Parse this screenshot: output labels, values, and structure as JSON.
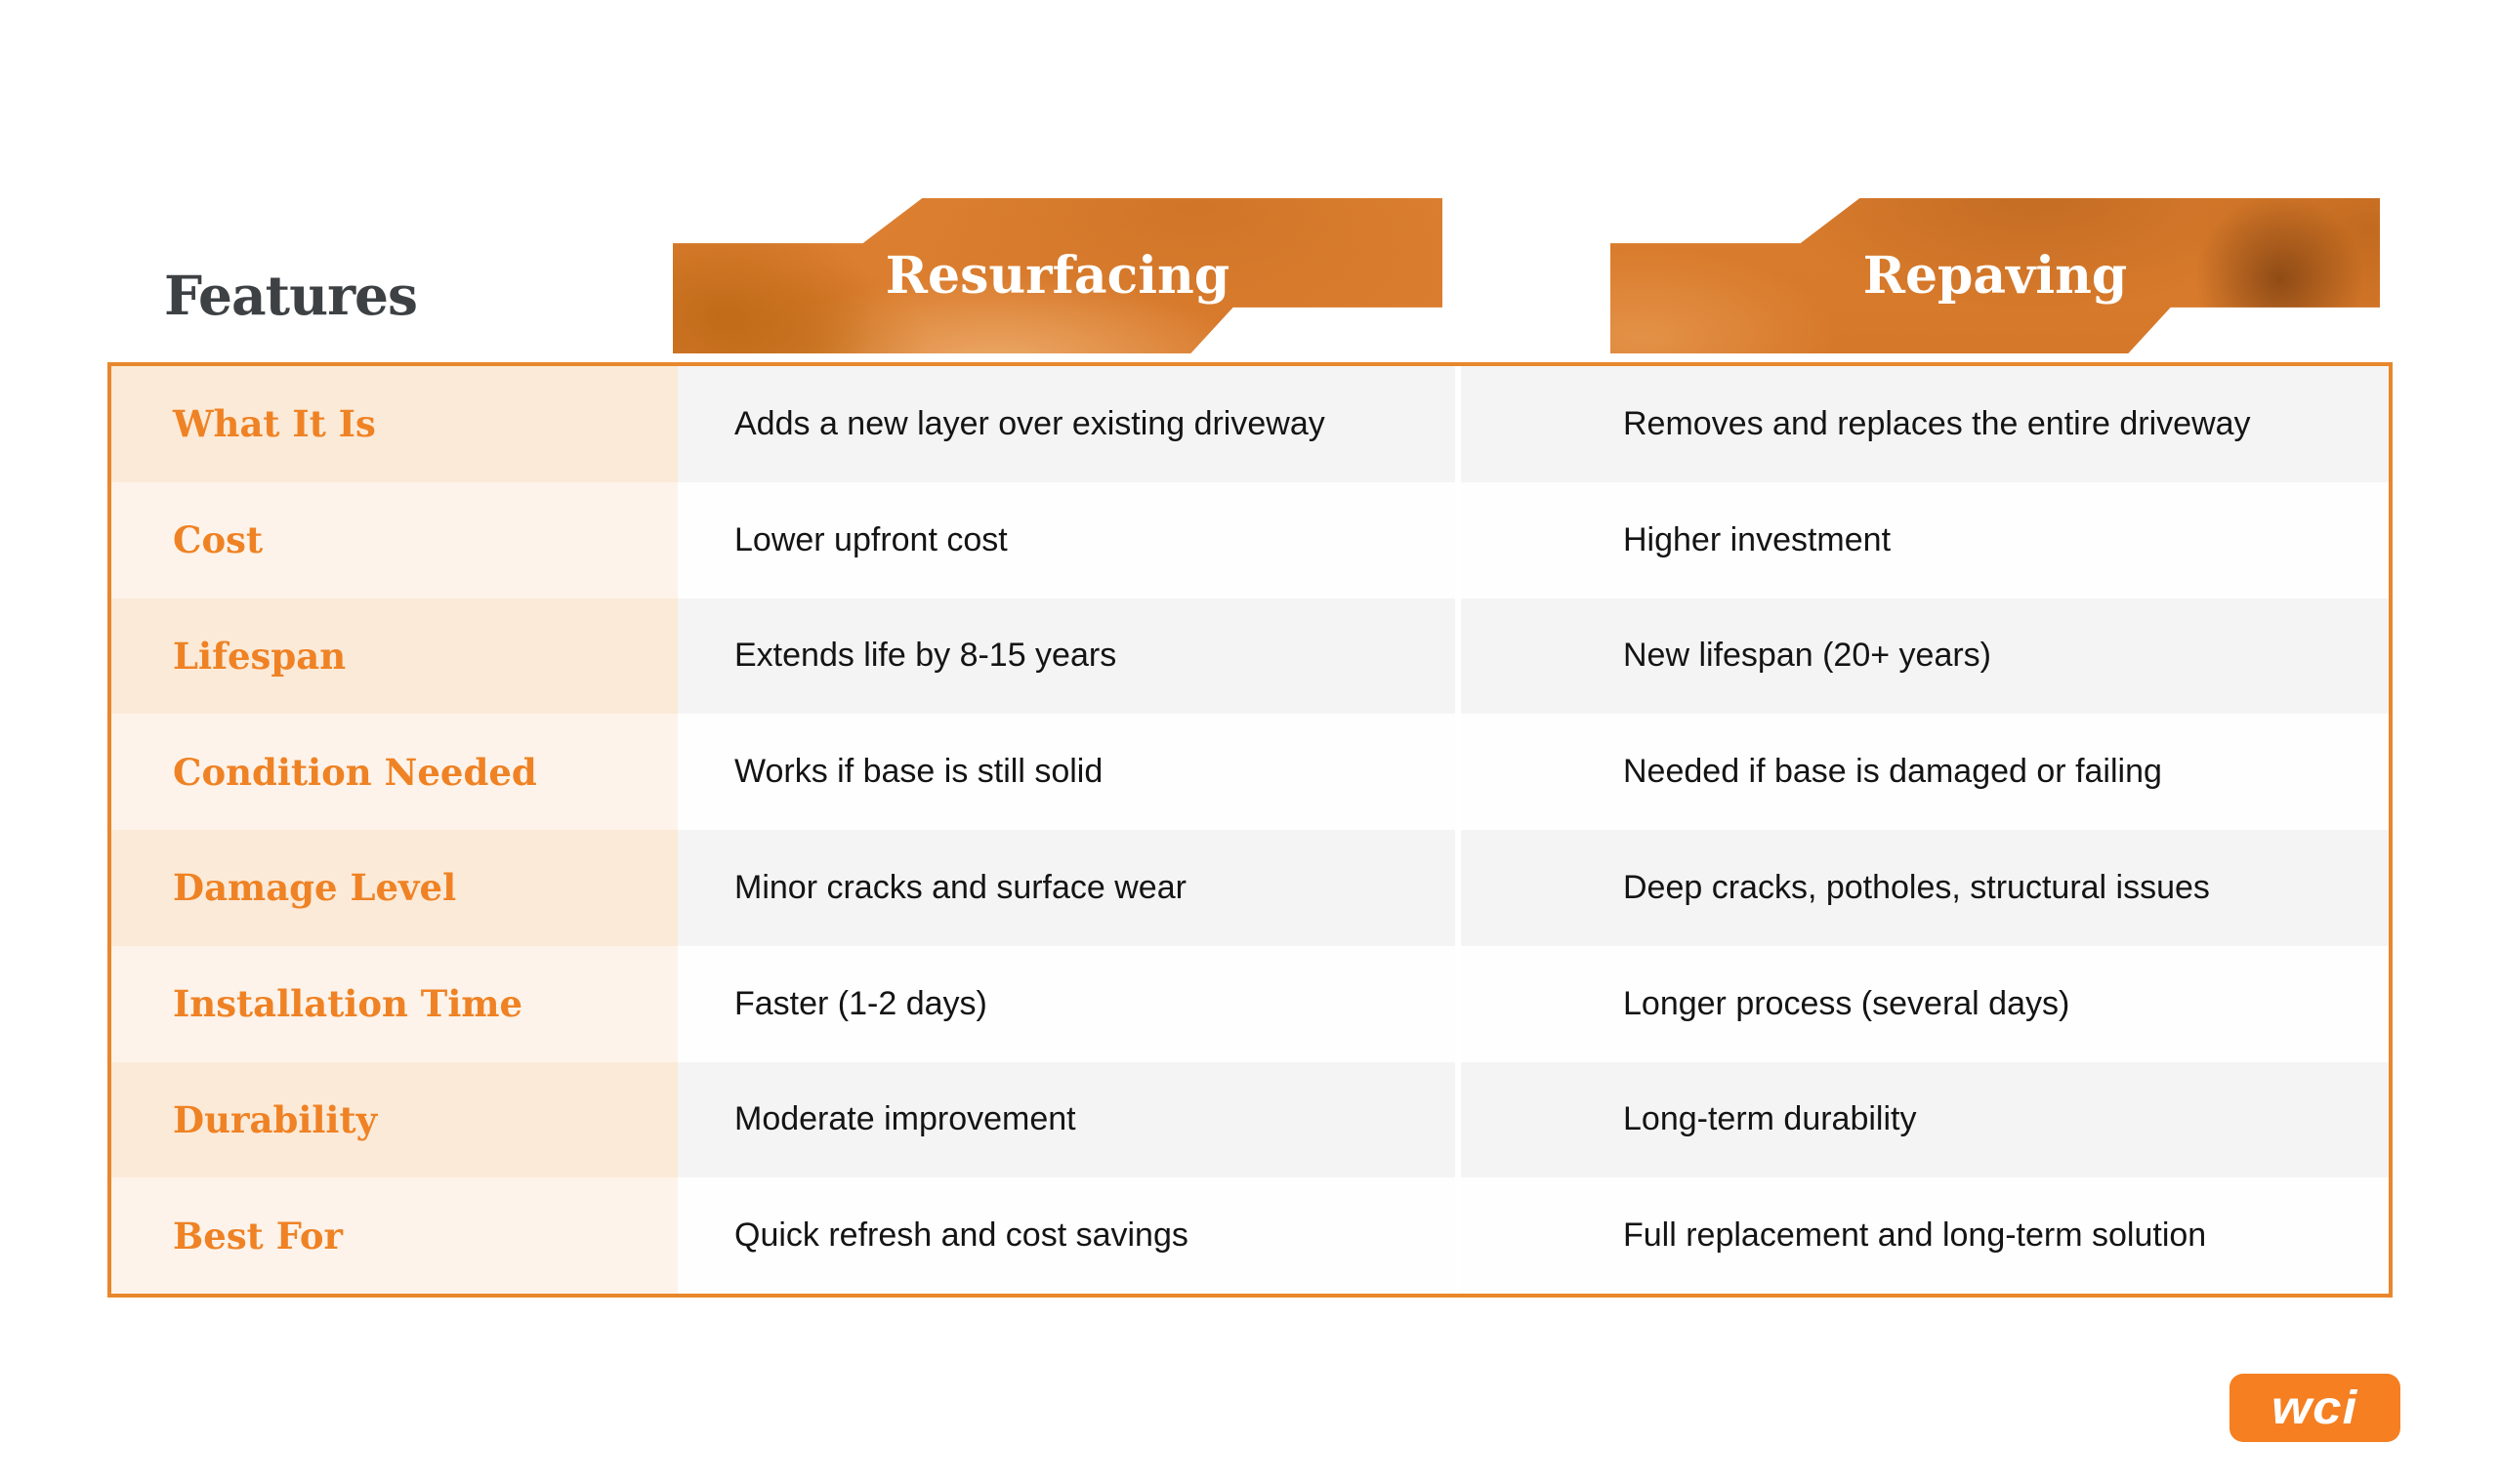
{
  "header": {
    "features_label": "Features",
    "columns": [
      {
        "label": "Resurfacing"
      },
      {
        "label": "Repaving"
      }
    ]
  },
  "table": {
    "rows": [
      {
        "feature": "What It Is",
        "resurfacing": "Adds a new layer over existing driveway",
        "repaving": "Removes and replaces the entire driveway"
      },
      {
        "feature": "Cost",
        "resurfacing": "Lower upfront cost",
        "repaving": "Higher investment"
      },
      {
        "feature": "Lifespan",
        "resurfacing": "Extends life by 8-15 years",
        "repaving": "New lifespan (20+ years)"
      },
      {
        "feature": "Condition Needed",
        "resurfacing": "Works if base is still solid",
        "repaving": "Needed if base is damaged or failing"
      },
      {
        "feature": "Damage Level",
        "resurfacing": "Minor cracks and surface wear",
        "repaving": "Deep cracks, potholes, structural issues"
      },
      {
        "feature": "Installation Time",
        "resurfacing": "Faster (1-2 days)",
        "repaving": "Longer process (several days)"
      },
      {
        "feature": "Durability",
        "resurfacing": "Moderate improvement",
        "repaving": "Long-term durability"
      },
      {
        "feature": "Best For",
        "resurfacing": "Quick refresh and cost savings",
        "repaving": "Full replacement and long-term solution"
      }
    ]
  },
  "logo": {
    "text": "wci"
  },
  "colors": {
    "accent_orange": "#ef8224",
    "table_border": "#e8872c",
    "banner_overlay": "#db7c2c",
    "feature_col_odd": "#fcead8",
    "feature_col_even": "#fdf3ea",
    "value_col_odd": "#f5f4f5",
    "value_col_even": "#fefefe",
    "title_gray": "#3e4144",
    "logo_orange": "#f57f21",
    "banner_text": "#ffffff"
  }
}
